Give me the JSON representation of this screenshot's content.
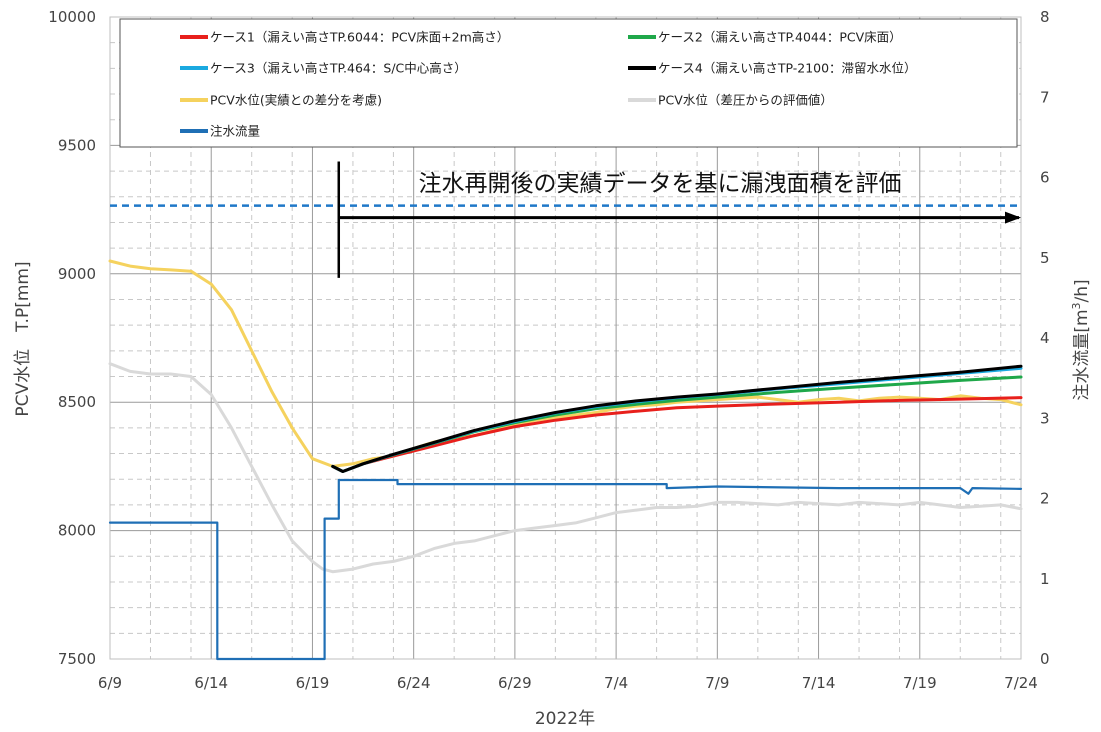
{
  "chart_data": {
    "type": "line",
    "xlabel": "2022年",
    "ylabel_left": "PCV水位　T.P[mm]",
    "ylabel_right_main": "注水流量[m",
    "ylabel_right_sup": "3",
    "ylabel_right_tail": "/h]",
    "x_range": [
      "2022-06-09",
      "2022-07-24"
    ],
    "x_ticks": [
      "6/9",
      "6/14",
      "6/19",
      "6/24",
      "6/29",
      "7/4",
      "7/9",
      "7/14",
      "7/19",
      "7/24"
    ],
    "x_tick_days": [
      0,
      5,
      10,
      15,
      20,
      25,
      30,
      35,
      40,
      45
    ],
    "y_left_range": [
      7500,
      10000
    ],
    "y_left_ticks": [
      "7500",
      "8000",
      "8500",
      "9000",
      "9500",
      "10000"
    ],
    "y_right_range": [
      0,
      8
    ],
    "y_right_ticks": [
      "0",
      "1",
      "2",
      "3",
      "4",
      "5",
      "6",
      "7",
      "8"
    ],
    "grid": true,
    "annotation": {
      "text": "注水再開後の実績データを基に漏洩面積を評価",
      "start_day": 11.3,
      "end_day": 45,
      "arrow_y_flow": 5.5,
      "bar_top_flow": 6.2,
      "bar_bottom_flow": 4.75
    },
    "reference_line": {
      "axis": "right",
      "value": 5.65,
      "color": "#1f78c8",
      "style": "dashed"
    },
    "legend_position": "top",
    "series": [
      {
        "name": "ケース1（漏えい高さTP.6044：PCV床面+2m高さ）",
        "axis": "left",
        "color": "#e8201c",
        "width": 3,
        "points": [
          [
            11.0,
            8250
          ],
          [
            11.5,
            8230
          ],
          [
            12.5,
            8260
          ],
          [
            14,
            8290
          ],
          [
            16,
            8330
          ],
          [
            18,
            8370
          ],
          [
            20,
            8405
          ],
          [
            22,
            8430
          ],
          [
            24,
            8450
          ],
          [
            26,
            8465
          ],
          [
            28,
            8478
          ],
          [
            30,
            8485
          ],
          [
            33,
            8493
          ],
          [
            36,
            8500
          ],
          [
            39,
            8507
          ],
          [
            42,
            8512
          ],
          [
            45,
            8518
          ]
        ]
      },
      {
        "name": "ケース2（漏えい高さTP.4044：PCV床面）",
        "axis": "left",
        "color": "#1fa84a",
        "width": 3,
        "points": [
          [
            11.0,
            8250
          ],
          [
            11.5,
            8230
          ],
          [
            12.5,
            8260
          ],
          [
            14,
            8295
          ],
          [
            16,
            8340
          ],
          [
            18,
            8385
          ],
          [
            20,
            8420
          ],
          [
            22,
            8450
          ],
          [
            24,
            8475
          ],
          [
            26,
            8492
          ],
          [
            28,
            8507
          ],
          [
            30,
            8520
          ],
          [
            33,
            8538
          ],
          [
            36,
            8555
          ],
          [
            39,
            8570
          ],
          [
            42,
            8585
          ],
          [
            45,
            8598
          ]
        ]
      },
      {
        "name": "ケース3（漏えい高さTP.464：S/C中心高さ）",
        "axis": "left",
        "color": "#1aa9e0",
        "width": 3,
        "points": [
          [
            11.0,
            8250
          ],
          [
            11.5,
            8230
          ],
          [
            12.5,
            8260
          ],
          [
            14,
            8296
          ],
          [
            16,
            8342
          ],
          [
            18,
            8388
          ],
          [
            20,
            8425
          ],
          [
            22,
            8458
          ],
          [
            24,
            8483
          ],
          [
            26,
            8502
          ],
          [
            28,
            8518
          ],
          [
            30,
            8530
          ],
          [
            33,
            8552
          ],
          [
            36,
            8572
          ],
          [
            39,
            8592
          ],
          [
            42,
            8612
          ],
          [
            45,
            8632
          ]
        ]
      },
      {
        "name": "ケース4（漏えい高さTP-2100：滞留水水位）",
        "axis": "left",
        "color": "#000000",
        "width": 3,
        "points": [
          [
            11.0,
            8250
          ],
          [
            11.5,
            8230
          ],
          [
            12.5,
            8260
          ],
          [
            14,
            8297
          ],
          [
            16,
            8343
          ],
          [
            18,
            8390
          ],
          [
            20,
            8428
          ],
          [
            22,
            8460
          ],
          [
            24,
            8486
          ],
          [
            26,
            8505
          ],
          [
            28,
            8520
          ],
          [
            30,
            8532
          ],
          [
            33,
            8555
          ],
          [
            36,
            8577
          ],
          [
            39,
            8597
          ],
          [
            42,
            8617
          ],
          [
            45,
            8640
          ]
        ]
      },
      {
        "name": "PCV水位(実績との差分を考慮)",
        "axis": "left",
        "color": "#f5d25e",
        "width": 3,
        "points": [
          [
            0,
            9050
          ],
          [
            1,
            9030
          ],
          [
            2,
            9020
          ],
          [
            3,
            9015
          ],
          [
            4,
            9010
          ],
          [
            5,
            8960
          ],
          [
            6,
            8860
          ],
          [
            7,
            8700
          ],
          [
            8,
            8540
          ],
          [
            9,
            8400
          ],
          [
            10,
            8280
          ],
          [
            11,
            8250
          ],
          [
            12,
            8260
          ],
          [
            13,
            8280
          ],
          [
            14,
            8290
          ],
          [
            15,
            8320
          ],
          [
            16,
            8345
          ],
          [
            17,
            8360
          ],
          [
            18,
            8370
          ],
          [
            19,
            8390
          ],
          [
            20,
            8410
          ],
          [
            21,
            8430
          ],
          [
            22,
            8440
          ],
          [
            23,
            8450
          ],
          [
            24,
            8460
          ],
          [
            25,
            8475
          ],
          [
            26,
            8485
          ],
          [
            27,
            8490
          ],
          [
            28,
            8500
          ],
          [
            29,
            8505
          ],
          [
            30,
            8510
          ],
          [
            31,
            8515
          ],
          [
            32,
            8520
          ],
          [
            33,
            8510
          ],
          [
            34,
            8500
          ],
          [
            35,
            8510
          ],
          [
            36,
            8515
          ],
          [
            37,
            8505
          ],
          [
            38,
            8515
          ],
          [
            39,
            8520
          ],
          [
            40,
            8515
          ],
          [
            41,
            8510
          ],
          [
            42,
            8525
          ],
          [
            43,
            8515
          ],
          [
            44,
            8510
          ],
          [
            45,
            8490
          ]
        ]
      },
      {
        "name": "PCV水位（差圧からの評価値）",
        "axis": "left",
        "color": "#d9d9d9",
        "width": 3,
        "points": [
          [
            0,
            8650
          ],
          [
            1,
            8620
          ],
          [
            2,
            8610
          ],
          [
            3,
            8610
          ],
          [
            4,
            8600
          ],
          [
            5,
            8530
          ],
          [
            6,
            8400
          ],
          [
            7,
            8250
          ],
          [
            8,
            8100
          ],
          [
            9,
            7960
          ],
          [
            10,
            7880
          ],
          [
            10.5,
            7850
          ],
          [
            11,
            7840
          ],
          [
            12,
            7850
          ],
          [
            13,
            7870
          ],
          [
            14,
            7880
          ],
          [
            15,
            7900
          ],
          [
            16,
            7930
          ],
          [
            17,
            7950
          ],
          [
            18,
            7960
          ],
          [
            19,
            7980
          ],
          [
            20,
            8000
          ],
          [
            21,
            8010
          ],
          [
            22,
            8020
          ],
          [
            23,
            8030
          ],
          [
            24,
            8050
          ],
          [
            25,
            8070
          ],
          [
            26,
            8080
          ],
          [
            27,
            8090
          ],
          [
            28,
            8090
          ],
          [
            29,
            8095
          ],
          [
            30,
            8110
          ],
          [
            31,
            8110
          ],
          [
            32,
            8105
          ],
          [
            33,
            8100
          ],
          [
            34,
            8110
          ],
          [
            35,
            8105
          ],
          [
            36,
            8100
          ],
          [
            37,
            8110
          ],
          [
            38,
            8105
          ],
          [
            39,
            8100
          ],
          [
            40,
            8110
          ],
          [
            41,
            8100
          ],
          [
            42,
            8090
          ],
          [
            43,
            8095
          ],
          [
            44,
            8100
          ],
          [
            45,
            8085
          ]
        ]
      },
      {
        "name": "注水流量",
        "axis": "right",
        "color": "#1f6fb5",
        "width": 2.2,
        "step": true,
        "points": [
          [
            0,
            1.7
          ],
          [
            5.3,
            1.7
          ],
          [
            5.3,
            0
          ],
          [
            10.6,
            0
          ],
          [
            10.6,
            1.75
          ],
          [
            11.3,
            1.75
          ],
          [
            11.3,
            2.23
          ],
          [
            14.2,
            2.23
          ],
          [
            14.2,
            2.18
          ],
          [
            27.5,
            2.18
          ],
          [
            27.5,
            2.13
          ],
          [
            30,
            2.15
          ],
          [
            36,
            2.13
          ],
          [
            42,
            2.13
          ],
          [
            42.4,
            2.06
          ],
          [
            42.6,
            2.13
          ],
          [
            45,
            2.12
          ]
        ]
      }
    ]
  }
}
